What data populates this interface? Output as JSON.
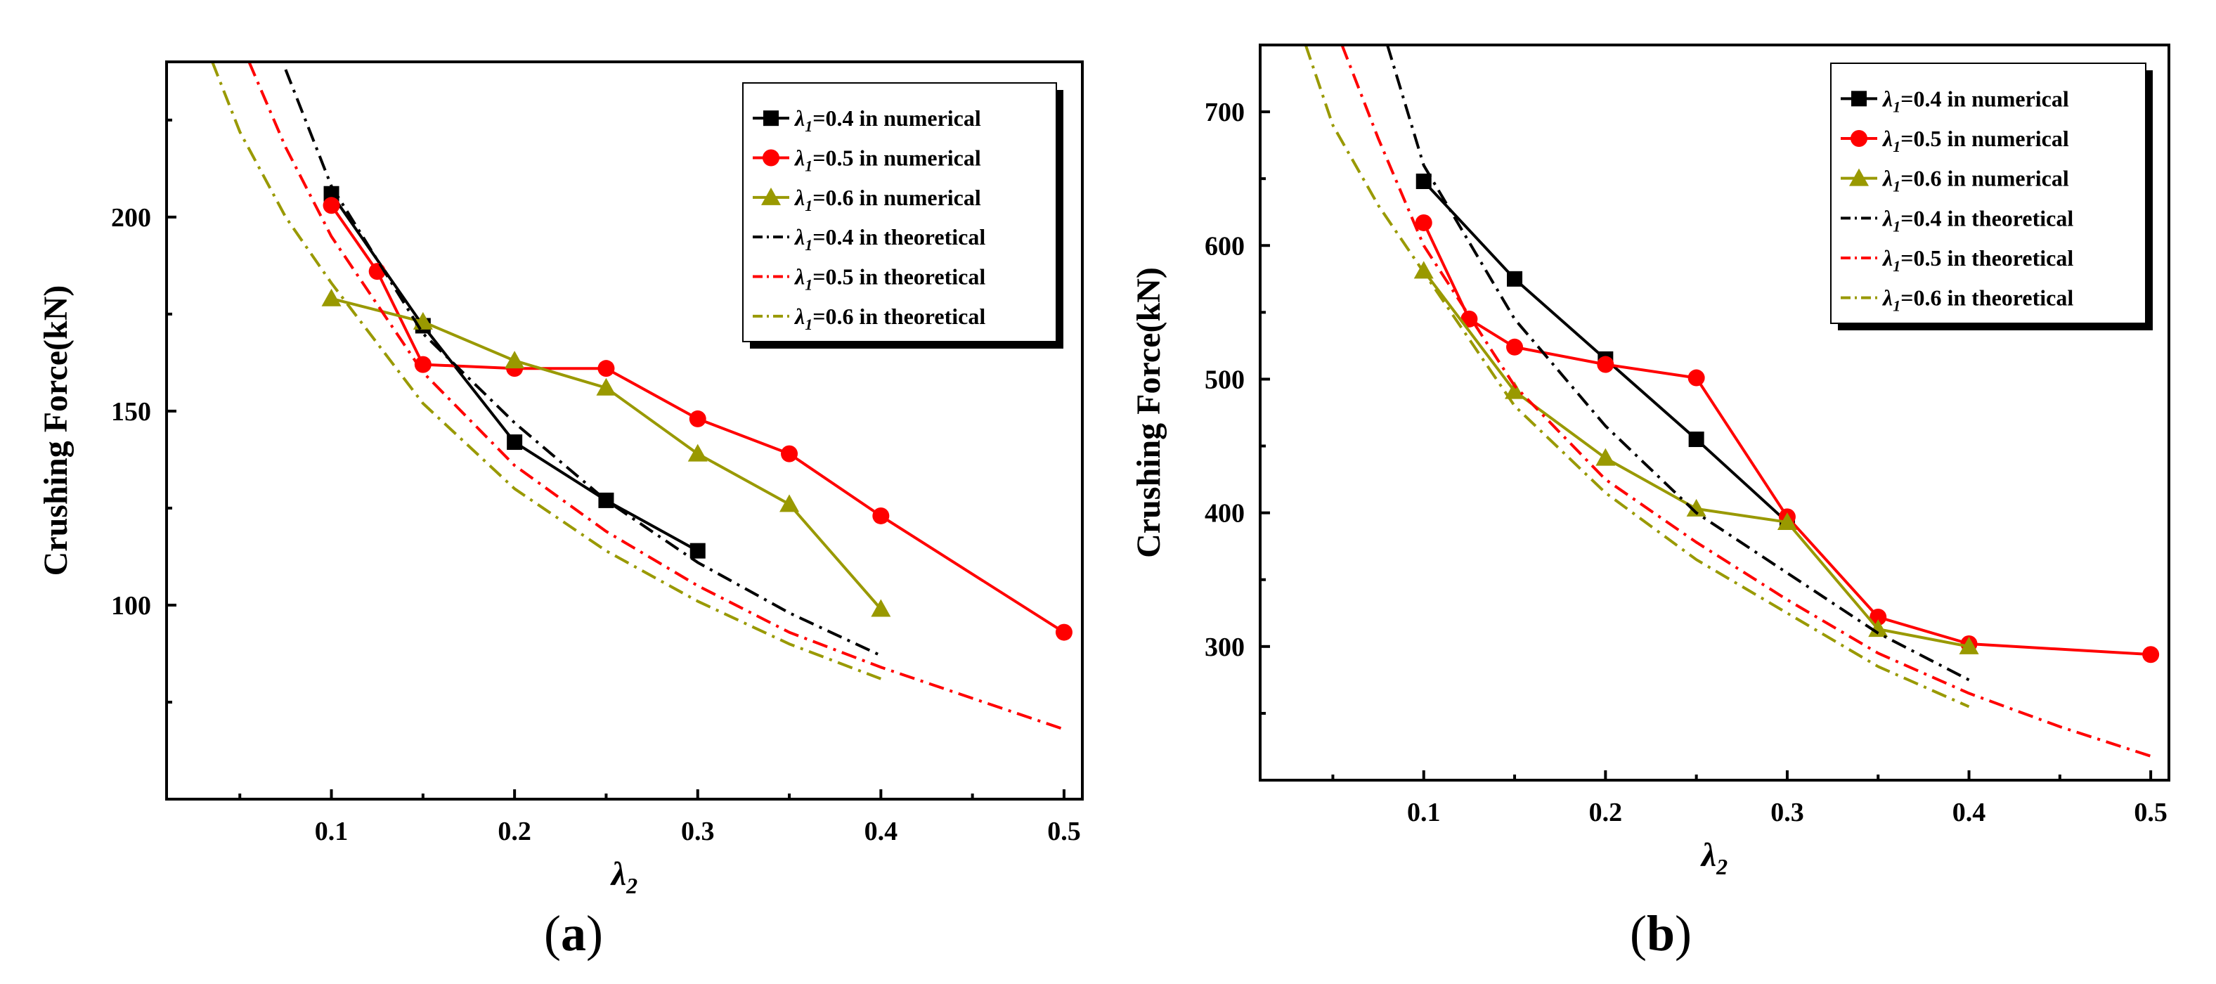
{
  "figure": {
    "panels": [
      {
        "label_text": "(a)",
        "label_open": "(",
        "label_letter": "a",
        "label_close": ")"
      },
      {
        "label_text": "(b)",
        "label_open": "(",
        "label_letter": "b",
        "label_close": ")"
      }
    ]
  },
  "chart_data": [
    {
      "type": "line",
      "panel": "a",
      "xlabel": "λ2",
      "ylabel": "Crushing Force(kN)",
      "xlim": [
        0.01,
        0.51
      ],
      "ylim": [
        50,
        240
      ],
      "x_ticks": [
        0.1,
        0.2,
        0.3,
        0.4,
        0.5
      ],
      "x_tick_labels": [
        "0.1",
        "0.2",
        "0.3",
        "0.4",
        "0.5"
      ],
      "y_ticks": [
        100,
        150,
        200
      ],
      "y_tick_labels": [
        "100",
        "150",
        "200"
      ],
      "legend_position": "top-right",
      "series": [
        {
          "name": "λ1=0.4 in numerical",
          "label_suffix": "=0.4 in numerical",
          "color": "#000000",
          "style": "solid",
          "marker": "square",
          "x": [
            0.1,
            0.15,
            0.2,
            0.25,
            0.3
          ],
          "y": [
            206,
            172,
            142,
            127,
            114
          ]
        },
        {
          "name": "λ1=0.5 in numerical",
          "label_suffix": "=0.5 in numerical",
          "color": "#ff0000",
          "style": "solid",
          "marker": "circle",
          "x": [
            0.1,
            0.125,
            0.15,
            0.2,
            0.25,
            0.3,
            0.35,
            0.4,
            0.5
          ],
          "y": [
            203,
            186,
            162,
            161,
            161,
            148,
            139,
            123,
            93
          ]
        },
        {
          "name": "λ1=0.6 in numerical",
          "label_suffix": "=0.6 in numerical",
          "color": "#999900",
          "style": "solid",
          "marker": "triangle",
          "x": [
            0.1,
            0.15,
            0.2,
            0.25,
            0.3,
            0.35,
            0.4
          ],
          "y": [
            179,
            173,
            163,
            156,
            139,
            126,
            99
          ]
        },
        {
          "name": "λ1=0.4 in theoretical",
          "label_suffix": "=0.4 in theoretical",
          "color": "#000000",
          "style": "dashdot",
          "marker": "none",
          "x": [
            0.075,
            0.1,
            0.15,
            0.2,
            0.25,
            0.3,
            0.35,
            0.4
          ],
          "y": [
            238,
            208,
            170,
            147,
            127,
            111,
            98,
            87
          ]
        },
        {
          "name": "λ1=0.5 in theoretical",
          "label_suffix": "=0.5 in theoretical",
          "color": "#ff0000",
          "style": "dashdot",
          "marker": "none",
          "x": [
            0.055,
            0.075,
            0.1,
            0.15,
            0.2,
            0.25,
            0.3,
            0.35,
            0.4,
            0.45,
            0.5
          ],
          "y": [
            240,
            218,
            195,
            160,
            136,
            119,
            105,
            93,
            84,
            76,
            68
          ]
        },
        {
          "name": "λ1=0.6 in theoretical",
          "label_suffix": "=0.6 in theoretical",
          "color": "#999900",
          "style": "dashdot",
          "marker": "none",
          "x": [
            0.035,
            0.05,
            0.075,
            0.1,
            0.15,
            0.2,
            0.25,
            0.3,
            0.35,
            0.4
          ],
          "y": [
            240,
            222,
            200,
            183,
            152,
            130,
            114,
            101,
            90,
            81
          ]
        }
      ]
    },
    {
      "type": "line",
      "panel": "b",
      "xlabel": "λ2",
      "ylabel": "Crushing Force(kN)",
      "xlim": [
        0.01,
        0.51
      ],
      "ylim": [
        200,
        750
      ],
      "x_ticks": [
        0.1,
        0.2,
        0.3,
        0.4,
        0.5
      ],
      "x_tick_labels": [
        "0.1",
        "0.2",
        "0.3",
        "0.4",
        "0.5"
      ],
      "y_ticks": [
        300,
        400,
        500,
        600,
        700
      ],
      "y_tick_labels": [
        "300",
        "400",
        "500",
        "600",
        "700"
      ],
      "legend_position": "top-right",
      "series": [
        {
          "name": "λ1=0.4 in numerical",
          "label_suffix": "=0.4 in numerical",
          "color": "#000000",
          "style": "solid",
          "marker": "square",
          "x": [
            0.1,
            0.15,
            0.2,
            0.25,
            0.3
          ],
          "y": [
            648,
            575,
            515,
            455,
            393
          ]
        },
        {
          "name": "λ1=0.5 in numerical",
          "label_suffix": "=0.5 in numerical",
          "color": "#ff0000",
          "style": "solid",
          "marker": "circle",
          "x": [
            0.1,
            0.125,
            0.15,
            0.2,
            0.25,
            0.3,
            0.35,
            0.4,
            0.5
          ],
          "y": [
            617,
            545,
            524,
            511,
            501,
            397,
            322,
            302,
            294
          ]
        },
        {
          "name": "λ1=0.6 in numerical",
          "label_suffix": "=0.6 in numerical",
          "color": "#999900",
          "style": "solid",
          "marker": "triangle",
          "x": [
            0.1,
            0.15,
            0.2,
            0.25,
            0.3,
            0.35,
            0.4
          ],
          "y": [
            581,
            491,
            441,
            403,
            393,
            313,
            300
          ]
        },
        {
          "name": "λ1=0.4 in theoretical",
          "label_suffix": "=0.4 in theoretical",
          "color": "#000000",
          "style": "dashdot",
          "marker": "none",
          "x": [
            0.08,
            0.1,
            0.15,
            0.2,
            0.25,
            0.3,
            0.35,
            0.4
          ],
          "y": [
            750,
            660,
            545,
            465,
            400,
            355,
            310,
            275
          ]
        },
        {
          "name": "λ1=0.5 in theoretical",
          "label_suffix": "=0.5 in theoretical",
          "color": "#ff0000",
          "style": "dashdot",
          "marker": "none",
          "x": [
            0.055,
            0.075,
            0.1,
            0.15,
            0.2,
            0.25,
            0.3,
            0.35,
            0.4,
            0.45,
            0.5
          ],
          "y": [
            750,
            680,
            600,
            495,
            425,
            378,
            335,
            295,
            265,
            240,
            218
          ]
        },
        {
          "name": "λ1=0.6 in theoretical",
          "label_suffix": "=0.6 in theoretical",
          "color": "#999900",
          "style": "dashdot",
          "marker": "none",
          "x": [
            0.035,
            0.05,
            0.075,
            0.1,
            0.15,
            0.2,
            0.25,
            0.3,
            0.35,
            0.4
          ],
          "y": [
            750,
            690,
            630,
            580,
            480,
            415,
            365,
            325,
            285,
            255
          ]
        }
      ]
    }
  ]
}
